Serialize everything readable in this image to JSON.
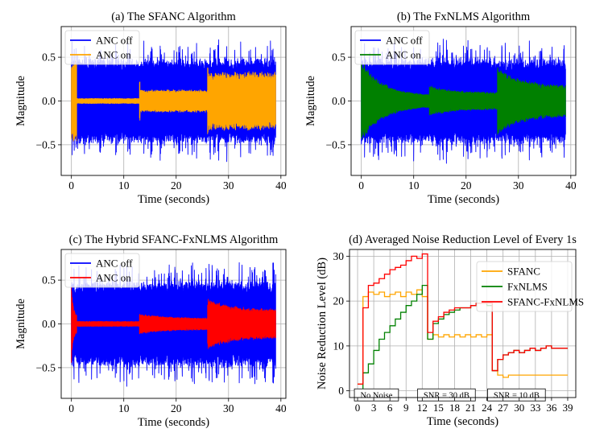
{
  "chart_data": [
    {
      "id": "a",
      "type": "line",
      "title": "(a) The SFANC Algorithm",
      "xlabel": "Time (seconds)",
      "ylabel": "Magnitude",
      "xlim": [
        -1.95,
        40.95
      ],
      "ylim": [
        -0.85,
        0.85
      ],
      "xticks": [
        0,
        10,
        20,
        30,
        40
      ],
      "yticks": [
        -0.5,
        0.0,
        0.5
      ],
      "ytick_labels": [
        "−0.5",
        "0.0",
        "0.5"
      ],
      "grid": true,
      "legend": "top-left",
      "series": [
        {
          "name": "ANC off",
          "color": "#0000ff",
          "kind": "noise",
          "segments": [
            {
              "t0": 0,
              "t1": 39,
              "amp": 0.5,
              "peak": 0.72
            }
          ]
        },
        {
          "name": "ANC on",
          "color": "#ffa500",
          "kind": "noise",
          "segments": [
            {
              "t0": 0,
              "t1": 1,
              "amp": 0.47
            },
            {
              "t0": 1,
              "t1": 13,
              "amp": 0.03
            },
            {
              "t0": 13,
              "t1": 26,
              "amp": 0.13,
              "spike": 0.22
            },
            {
              "t0": 26,
              "t1": 39,
              "amp": 0.34,
              "spike": 0.38
            }
          ]
        }
      ]
    },
    {
      "id": "b",
      "type": "line",
      "title": "(b) The FxNLMS Algorithm",
      "xlabel": "Time (seconds)",
      "ylabel": "Magnitude",
      "xlim": [
        -1.95,
        40.95
      ],
      "ylim": [
        -0.85,
        0.85
      ],
      "xticks": [
        0,
        10,
        20,
        30,
        40
      ],
      "yticks": [
        -0.5,
        0.0,
        0.5
      ],
      "ytick_labels": [
        "−0.5",
        "0.0",
        "0.5"
      ],
      "grid": true,
      "legend": "top-left",
      "series": [
        {
          "name": "ANC off",
          "color": "#0000ff",
          "kind": "noise",
          "segments": [
            {
              "t0": 0,
              "t1": 39,
              "amp": 0.5,
              "peak": 0.72
            }
          ]
        },
        {
          "name": "ANC on",
          "color": "#008000",
          "kind": "noise",
          "segments": [
            {
              "t0": 0,
              "t1": 13,
              "amp_start": 0.48,
              "amp_end": 0.06
            },
            {
              "t0": 13,
              "t1": 26,
              "amp_start": 0.18,
              "amp_end": 0.1
            },
            {
              "t0": 26,
              "t1": 39,
              "amp_start": 0.4,
              "amp_end": 0.18
            }
          ]
        }
      ]
    },
    {
      "id": "c",
      "type": "line",
      "title": "(c) The Hybrid SFANC-FxNLMS Algorithm",
      "xlabel": "Time (seconds)",
      "ylabel": "Magnitude",
      "xlim": [
        -1.95,
        40.95
      ],
      "ylim": [
        -0.85,
        0.85
      ],
      "xticks": [
        0,
        10,
        20,
        30,
        40
      ],
      "yticks": [
        -0.5,
        0.0,
        0.5
      ],
      "ytick_labels": [
        "−0.5",
        "0.0",
        "0.5"
      ],
      "grid": true,
      "legend": "top-left",
      "series": [
        {
          "name": "ANC off",
          "color": "#0000ff",
          "kind": "noise",
          "segments": [
            {
              "t0": 0,
              "t1": 39,
              "amp": 0.5,
              "peak": 0.72
            }
          ]
        },
        {
          "name": "ANC on",
          "color": "#ff0000",
          "kind": "noise",
          "segments": [
            {
              "t0": 0,
              "t1": 1,
              "amp_start": 0.48,
              "amp_end": 0.1
            },
            {
              "t0": 1,
              "t1": 13,
              "amp": 0.03
            },
            {
              "t0": 13,
              "t1": 26,
              "amp_start": 0.12,
              "amp_end": 0.07
            },
            {
              "t0": 26,
              "t1": 39,
              "amp_start": 0.3,
              "amp_end": 0.17
            }
          ]
        }
      ]
    },
    {
      "id": "d",
      "type": "line",
      "step": true,
      "title": "(d) Averaged Noise Reduction Level of Every 1s",
      "xlabel": "Time (seconds)",
      "ylabel": "Noise Reduction Level (dB)",
      "xlim": [
        -1.5,
        40.5
      ],
      "ylim": [
        -1.5,
        31.5
      ],
      "xticks": [
        0,
        3,
        6,
        9,
        12,
        15,
        18,
        21,
        24,
        27,
        30,
        33,
        36,
        39
      ],
      "yticks": [
        0,
        10,
        20,
        30
      ],
      "grid": true,
      "legend": "upper-right",
      "series": [
        {
          "name": "SFANC",
          "color": "#ffa500",
          "x": [
            0,
            1,
            2,
            3,
            4,
            5,
            6,
            7,
            8,
            9,
            10,
            11,
            12,
            13,
            14,
            15,
            16,
            17,
            18,
            19,
            20,
            21,
            22,
            23,
            24,
            25,
            26,
            27,
            28,
            29,
            30,
            31,
            32,
            33,
            34,
            35,
            36,
            37,
            38,
            39
          ],
          "values": [
            1.5,
            21.0,
            22.0,
            21.5,
            22.0,
            21.0,
            21.5,
            22.0,
            21.0,
            22.0,
            21.5,
            22.5,
            21.0,
            11.5,
            12.5,
            12.0,
            12.5,
            12.0,
            12.5,
            12.0,
            12.5,
            12.0,
            12.5,
            12.0,
            12.5,
            4.5,
            3.5,
            3.0,
            3.5,
            3.5,
            3.5,
            3.5,
            3.5,
            3.5,
            3.5,
            3.5,
            3.5,
            3.5,
            3.5,
            3.5
          ]
        },
        {
          "name": "FxNLMS",
          "color": "#008000",
          "x": [
            0,
            1,
            2,
            3,
            4,
            5,
            6,
            7,
            8,
            9,
            10,
            11,
            12,
            13,
            14,
            15,
            16,
            17,
            18,
            19,
            20,
            21,
            22,
            23,
            24,
            25,
            26,
            27,
            28,
            29,
            30,
            31,
            32,
            33,
            34,
            35,
            36,
            37,
            38,
            39
          ],
          "values": [
            0.0,
            4.0,
            6.0,
            9.0,
            11.5,
            13.0,
            14.5,
            16.0,
            17.5,
            19.0,
            20.0,
            21.5,
            23.5,
            11.5,
            15.0,
            16.0,
            17.0,
            17.5,
            18.0,
            18.5,
            18.5,
            19.0,
            19.5,
            19.5,
            19.0,
            4.5,
            7.0,
            8.0,
            8.5,
            9.0,
            8.5,
            9.0,
            9.5,
            9.0,
            9.5,
            10.0,
            9.5,
            9.5,
            9.5,
            9.5
          ]
        },
        {
          "name": "SFANC-FxNLMS",
          "color": "#ff0000",
          "x": [
            0,
            1,
            2,
            3,
            4,
            5,
            6,
            7,
            8,
            9,
            10,
            11,
            12,
            13,
            14,
            15,
            16,
            17,
            18,
            19,
            20,
            21,
            22,
            23,
            24,
            25,
            26,
            27,
            28,
            29,
            30,
            31,
            32,
            33,
            34,
            35,
            36,
            37,
            38,
            39
          ],
          "values": [
            1.5,
            18.5,
            23.5,
            24.0,
            25.0,
            26.0,
            27.0,
            27.5,
            28.0,
            29.0,
            30.0,
            29.5,
            30.5,
            13.0,
            15.5,
            16.5,
            17.5,
            18.0,
            18.5,
            18.5,
            18.5,
            19.0,
            19.5,
            19.5,
            19.5,
            4.5,
            7.0,
            8.0,
            8.5,
            9.0,
            8.5,
            9.0,
            9.5,
            9.0,
            9.5,
            10.0,
            9.5,
            9.5,
            9.5,
            9.5
          ]
        }
      ],
      "annotations": [
        {
          "text": "No Noise",
          "x": 3.5,
          "y": -1.0
        },
        {
          "text": "SNR = 30 dB",
          "x": 16.5,
          "y": -1.0
        },
        {
          "text": "SNR = 10 dB",
          "x": 29.5,
          "y": -1.0
        }
      ]
    }
  ]
}
